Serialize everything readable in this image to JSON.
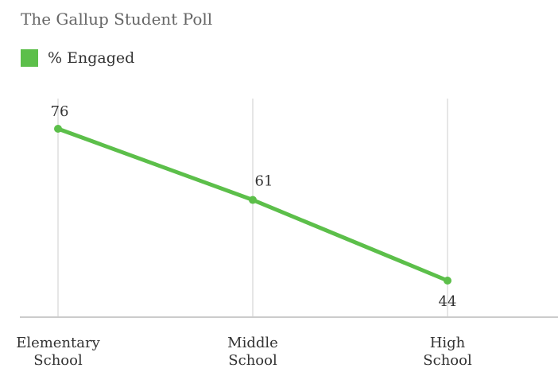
{
  "chart_data": {
    "type": "line",
    "title": "The Gallup Student Poll",
    "categories": [
      [
        "Elementary",
        "School"
      ],
      [
        "Middle",
        "School"
      ],
      [
        "High",
        "School"
      ]
    ],
    "series": [
      {
        "name": "% Engaged",
        "values": [
          76,
          61,
          44
        ],
        "color": "#5cbf4a"
      }
    ],
    "data_labels": [
      "76",
      "61",
      "44"
    ],
    "xlabel": "",
    "ylabel": "",
    "grid": "vertical",
    "legend_position": "top-left",
    "colors": {
      "gridline": "#dddddd",
      "axis": "#cccccc",
      "text": "#333333",
      "title": "#666666"
    }
  }
}
